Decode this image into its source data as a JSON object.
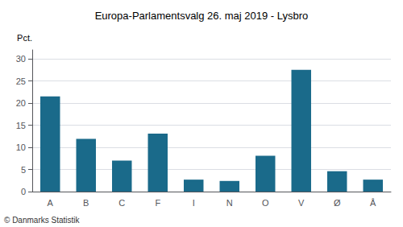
{
  "chart_data": {
    "type": "bar",
    "title": "Europa-Parlamentsvalg 26. maj 2019 - Lysbro",
    "ylabel": "Pct.",
    "footer": "© Danmarks Statistik",
    "categories": [
      "A",
      "B",
      "C",
      "F",
      "I",
      "N",
      "O",
      "V",
      "Ø",
      "Å"
    ],
    "values": [
      21.5,
      11.9,
      7.0,
      13.1,
      2.7,
      2.4,
      8.1,
      27.5,
      4.6,
      2.7
    ],
    "color": "#1a6a8a",
    "ylim": [
      0,
      32
    ],
    "yticks": [
      0,
      5,
      10,
      15,
      20,
      25,
      30
    ],
    "grid": true
  }
}
